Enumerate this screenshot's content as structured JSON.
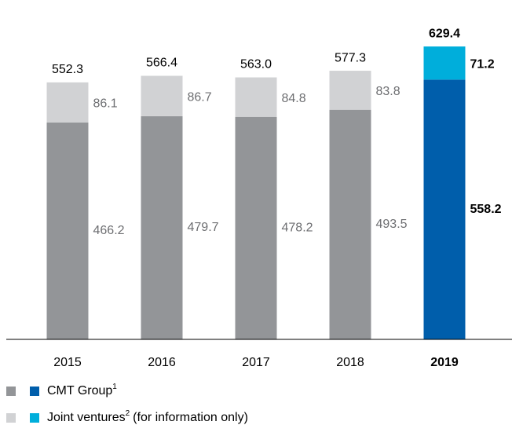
{
  "chart_data": {
    "type": "stacked_bar",
    "categories": [
      "2015",
      "2016",
      "2017",
      "2018",
      "2019"
    ],
    "series": [
      {
        "name": "CMT Group",
        "footnote": "1",
        "color": "#939598",
        "highlight_color": "#005eab",
        "values": [
          466.2,
          479.7,
          478.2,
          493.5,
          558.2
        ]
      },
      {
        "name": "Joint ventures",
        "footnote": "2",
        "note": "(for information only)",
        "color": "#d1d2d4",
        "highlight_color": "#00aedb",
        "values": [
          86.1,
          86.7,
          84.8,
          83.8,
          71.2
        ]
      }
    ],
    "totals": {
      "values": [
        552.3,
        566.4,
        563,
        577.3,
        629.4
      ],
      "value_labels": [
        "552.3",
        "566.4",
        "563.0",
        "577.3",
        "629.4"
      ]
    },
    "highlight_index": 4,
    "ylim": [
      0,
      650
    ]
  }
}
